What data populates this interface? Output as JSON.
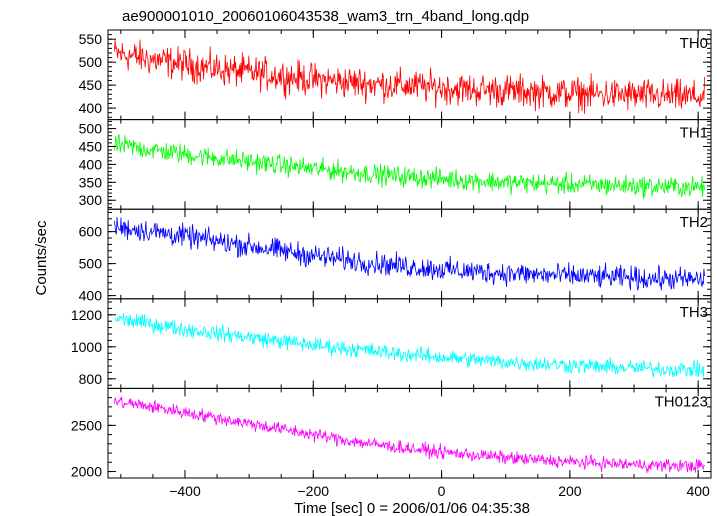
{
  "title": "ae900001010_20060106043538_wam3_trn_4band_long.qdp",
  "xlabel": "Time [sec] 0 = 2006/01/06 04:35:38",
  "ylabel": "Counts/sec",
  "chart_data": {
    "type": "line",
    "title": "ae900001010_20060106043538_wam3_trn_4band_long.qdp",
    "xlabel": "Time [sec] 0 = 2006/01/06 04:35:38",
    "ylabel": "Counts/sec",
    "xlim": [
      -520,
      420
    ],
    "xticks": [
      -400,
      -200,
      0,
      200,
      400
    ],
    "grid": false,
    "legend": "none",
    "panels": [
      {
        "name": "TH0",
        "color": "#ff0000",
        "ylim": [
          375,
          570
        ],
        "yticks": [
          400,
          450,
          500,
          550
        ],
        "x": [
          -510,
          -450,
          -400,
          -350,
          -300,
          -250,
          -200,
          -150,
          -100,
          -50,
          0,
          50,
          100,
          150,
          200,
          250,
          300,
          350,
          410
        ],
        "values": [
          520,
          505,
          495,
          485,
          478,
          470,
          462,
          457,
          452,
          448,
          444,
          440,
          438,
          435,
          432,
          430,
          428,
          426,
          424
        ],
        "noise": 25
      },
      {
        "name": "TH1",
        "color": "#00ff00",
        "ylim": [
          275,
          525
        ],
        "yticks": [
          300,
          350,
          400,
          450,
          500
        ],
        "x": [
          -510,
          -450,
          -400,
          -350,
          -300,
          -250,
          -200,
          -150,
          -100,
          -50,
          0,
          50,
          100,
          150,
          200,
          250,
          300,
          350,
          410
        ],
        "values": [
          455,
          440,
          428,
          418,
          408,
          398,
          388,
          380,
          372,
          365,
          360,
          355,
          350,
          347,
          344,
          342,
          340,
          338,
          336
        ],
        "noise": 20
      },
      {
        "name": "TH2",
        "color": "#0000ff",
        "ylim": [
          390,
          670
        ],
        "yticks": [
          400,
          500,
          600
        ],
        "x": [
          -510,
          -450,
          -400,
          -350,
          -300,
          -250,
          -200,
          -150,
          -100,
          -50,
          0,
          50,
          100,
          150,
          200,
          250,
          300,
          350,
          410
        ],
        "values": [
          615,
          600,
          585,
          570,
          555,
          540,
          525,
          512,
          500,
          490,
          482,
          475,
          470,
          465,
          462,
          458,
          455,
          452,
          450
        ],
        "noise": 25
      },
      {
        "name": "TH3",
        "color": "#00ffff",
        "ylim": [
          740,
          1300
        ],
        "yticks": [
          800,
          1000,
          1200
        ],
        "x": [
          -510,
          -450,
          -400,
          -350,
          -300,
          -250,
          -200,
          -150,
          -100,
          -50,
          0,
          50,
          100,
          150,
          200,
          250,
          300,
          350,
          410
        ],
        "values": [
          1180,
          1140,
          1110,
          1085,
          1060,
          1035,
          1010,
          990,
          970,
          950,
          935,
          920,
          905,
          895,
          885,
          875,
          868,
          860,
          855
        ],
        "noise": 35
      },
      {
        "name": "TH0123",
        "color": "#ff00ff",
        "ylim": [
          1930,
          2900
        ],
        "yticks": [
          2000,
          2500
        ],
        "x": [
          -510,
          -450,
          -400,
          -350,
          -300,
          -250,
          -200,
          -150,
          -100,
          -50,
          0,
          50,
          100,
          150,
          200,
          250,
          300,
          350,
          410
        ],
        "values": [
          2760,
          2700,
          2640,
          2580,
          2520,
          2460,
          2400,
          2340,
          2290,
          2250,
          2210,
          2180,
          2150,
          2125,
          2105,
          2090,
          2075,
          2065,
          2060
        ],
        "noise": 50
      }
    ]
  }
}
